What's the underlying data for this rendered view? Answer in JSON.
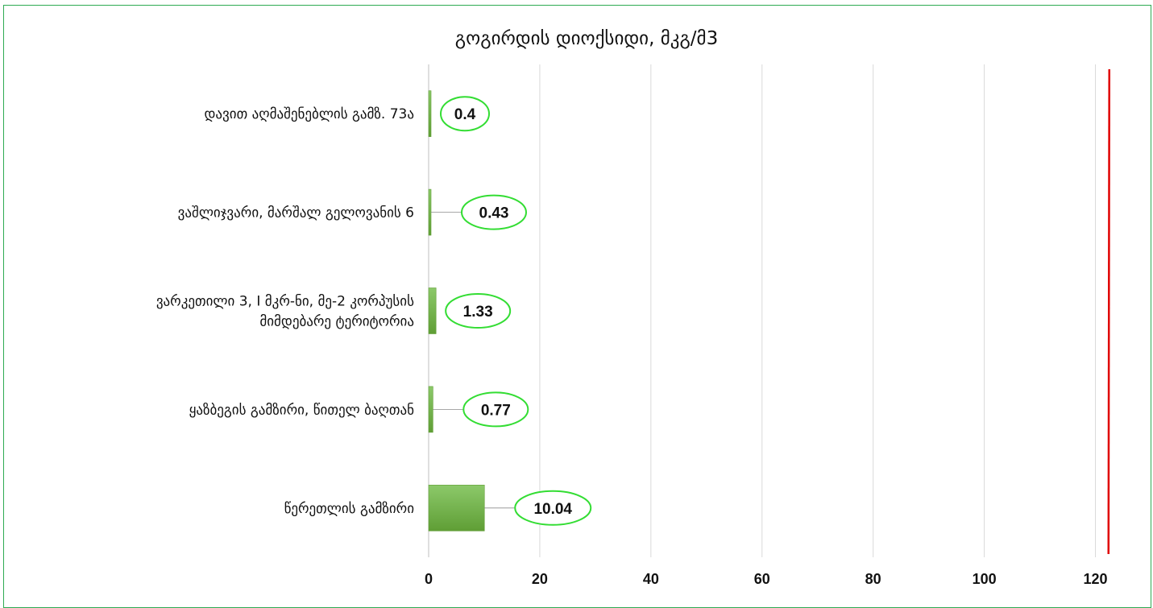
{
  "chart_data": {
    "type": "bar",
    "orientation": "horizontal",
    "title": "გოგირდის დიოქსიდი, მკგ/მ3",
    "categories": [
      [
        "დავით აღმაშენებლის გამზ. 73ა"
      ],
      [
        "ვაშლიჯვარი, მარშალ გელოვანის 6"
      ],
      [
        "ვარკეთილი 3, I მკრ-ნი, მე-2 კორპუსის",
        "მიმდებარე ტერიტორია"
      ],
      [
        "ყაზბეგის გამზირი, წითელ ბაღთან"
      ],
      [
        "წერეთლის გამზირი"
      ]
    ],
    "values": [
      0.4,
      0.43,
      1.33,
      0.77,
      10.04
    ],
    "data_labels": [
      "0.4",
      "0.43",
      "1.33",
      "0.77",
      "10.04"
    ],
    "xlim": [
      0,
      125
    ],
    "x_ticks": [
      0,
      20,
      40,
      60,
      80,
      100,
      120
    ],
    "limit_line": 122.5,
    "grid": "vertical",
    "legend": "none",
    "colors": {
      "bar_dark": "#5f9e35",
      "bar_light": "#8cc96a",
      "label_border": "#33dd33",
      "limit_line": "#e00000",
      "frame": "#2eaa52",
      "grid": "#d9d9d9"
    }
  }
}
